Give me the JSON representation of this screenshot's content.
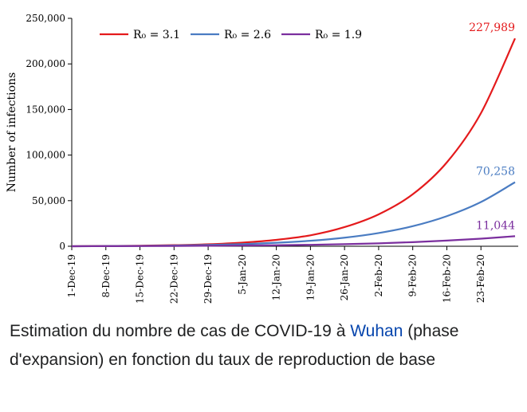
{
  "chart_data": {
    "type": "line",
    "title": "",
    "xlabel": "",
    "ylabel": "Number of infections",
    "ylim": [
      0,
      250000
    ],
    "y_ticks": [
      0,
      50000,
      100000,
      150000,
      200000,
      250000
    ],
    "y_tick_labels": [
      "0",
      "50,000",
      "100,000",
      "150,000",
      "200,000",
      "250,000"
    ],
    "x_tick_labels": [
      "1-Dec-19",
      "8-Dec-19",
      "15-Dec-19",
      "22-Dec-19",
      "29-Dec-19",
      "5-Jan-20",
      "12-Jan-20",
      "19-Jan-20",
      "26-Jan-20",
      "2-Feb-20",
      "9-Feb-20",
      "16-Feb-20",
      "23-Feb-20"
    ],
    "x": [
      "1-Dec-19",
      "8-Dec-19",
      "15-Dec-19",
      "22-Dec-19",
      "29-Dec-19",
      "5-Jan-20",
      "12-Jan-20",
      "19-Jan-20",
      "26-Jan-20",
      "2-Feb-20",
      "9-Feb-20",
      "16-Feb-20",
      "23-Feb-20",
      "29-Feb-20"
    ],
    "series": [
      {
        "name": "R₀ = 3.1",
        "color": "#e41a1c",
        "values": [
          0,
          300,
          600,
          1200,
          2200,
          4000,
          7000,
          12000,
          21000,
          35000,
          57000,
          92000,
          146000,
          227989
        ]
      },
      {
        "name": "R₀ = 2.6",
        "color": "#4a7cc2",
        "values": [
          0,
          200,
          400,
          800,
          1400,
          2300,
          3800,
          6000,
          9400,
          14500,
          22000,
          33000,
          48500,
          70258
        ]
      },
      {
        "name": "R₀ = 1.9",
        "color": "#7b2f9e",
        "values": [
          0,
          100,
          200,
          350,
          550,
          800,
          1100,
          1600,
          2300,
          3200,
          4500,
          6200,
          8300,
          11044
        ]
      }
    ],
    "end_labels": [
      "227,989",
      "70,258",
      "11,044"
    ],
    "legend_position": "top-left",
    "grid": false
  },
  "caption": {
    "before": "Estimation du nombre de cas de COVID-19 à ",
    "link": "Wuhan",
    "after": " (phase d'expansion) en fonction du taux de reproduction de base"
  }
}
